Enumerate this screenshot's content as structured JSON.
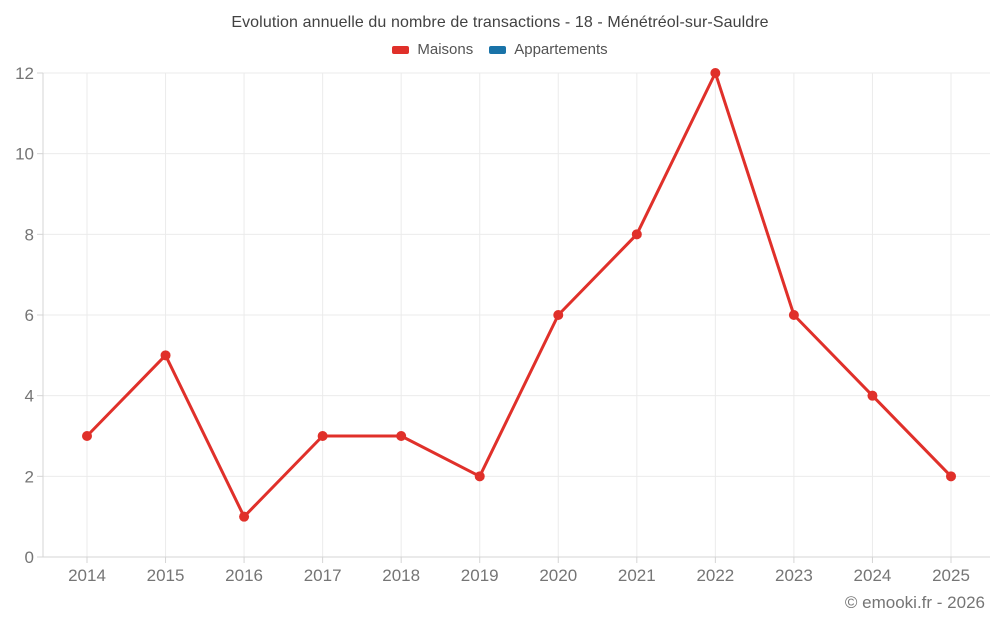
{
  "chart": {
    "title": "Evolution annuelle du nombre de transactions - 18 - Ménétréol-sur-Sauldre",
    "legend": [
      {
        "label": "Maisons",
        "color": "#e0302a"
      },
      {
        "label": "Appartements",
        "color": "#1973a8"
      }
    ],
    "footer": "© emooki.fr - 2026"
  },
  "chart_data": {
    "type": "line",
    "title": "Evolution annuelle du nombre de transactions - 18 - Ménétréol-sur-Sauldre",
    "categories": [
      "2014",
      "2015",
      "2016",
      "2017",
      "2018",
      "2019",
      "2020",
      "2021",
      "2022",
      "2023",
      "2024",
      "2025"
    ],
    "series": [
      {
        "name": "Maisons",
        "color": "#e0302a",
        "values": [
          3,
          5,
          1,
          3,
          3,
          2,
          6,
          8,
          12,
          6,
          4,
          2
        ]
      },
      {
        "name": "Appartements",
        "color": "#1973a8",
        "values": []
      }
    ],
    "xlabel": "",
    "ylabel": "",
    "ylim": [
      0,
      12
    ],
    "yticks": [
      0,
      2,
      4,
      6,
      8,
      10,
      12
    ],
    "grid": true,
    "legend_position": "top",
    "colors": {
      "gridline": "#ebebeb",
      "axis": "#d4d4d4",
      "tick_label": "#757575"
    }
  }
}
